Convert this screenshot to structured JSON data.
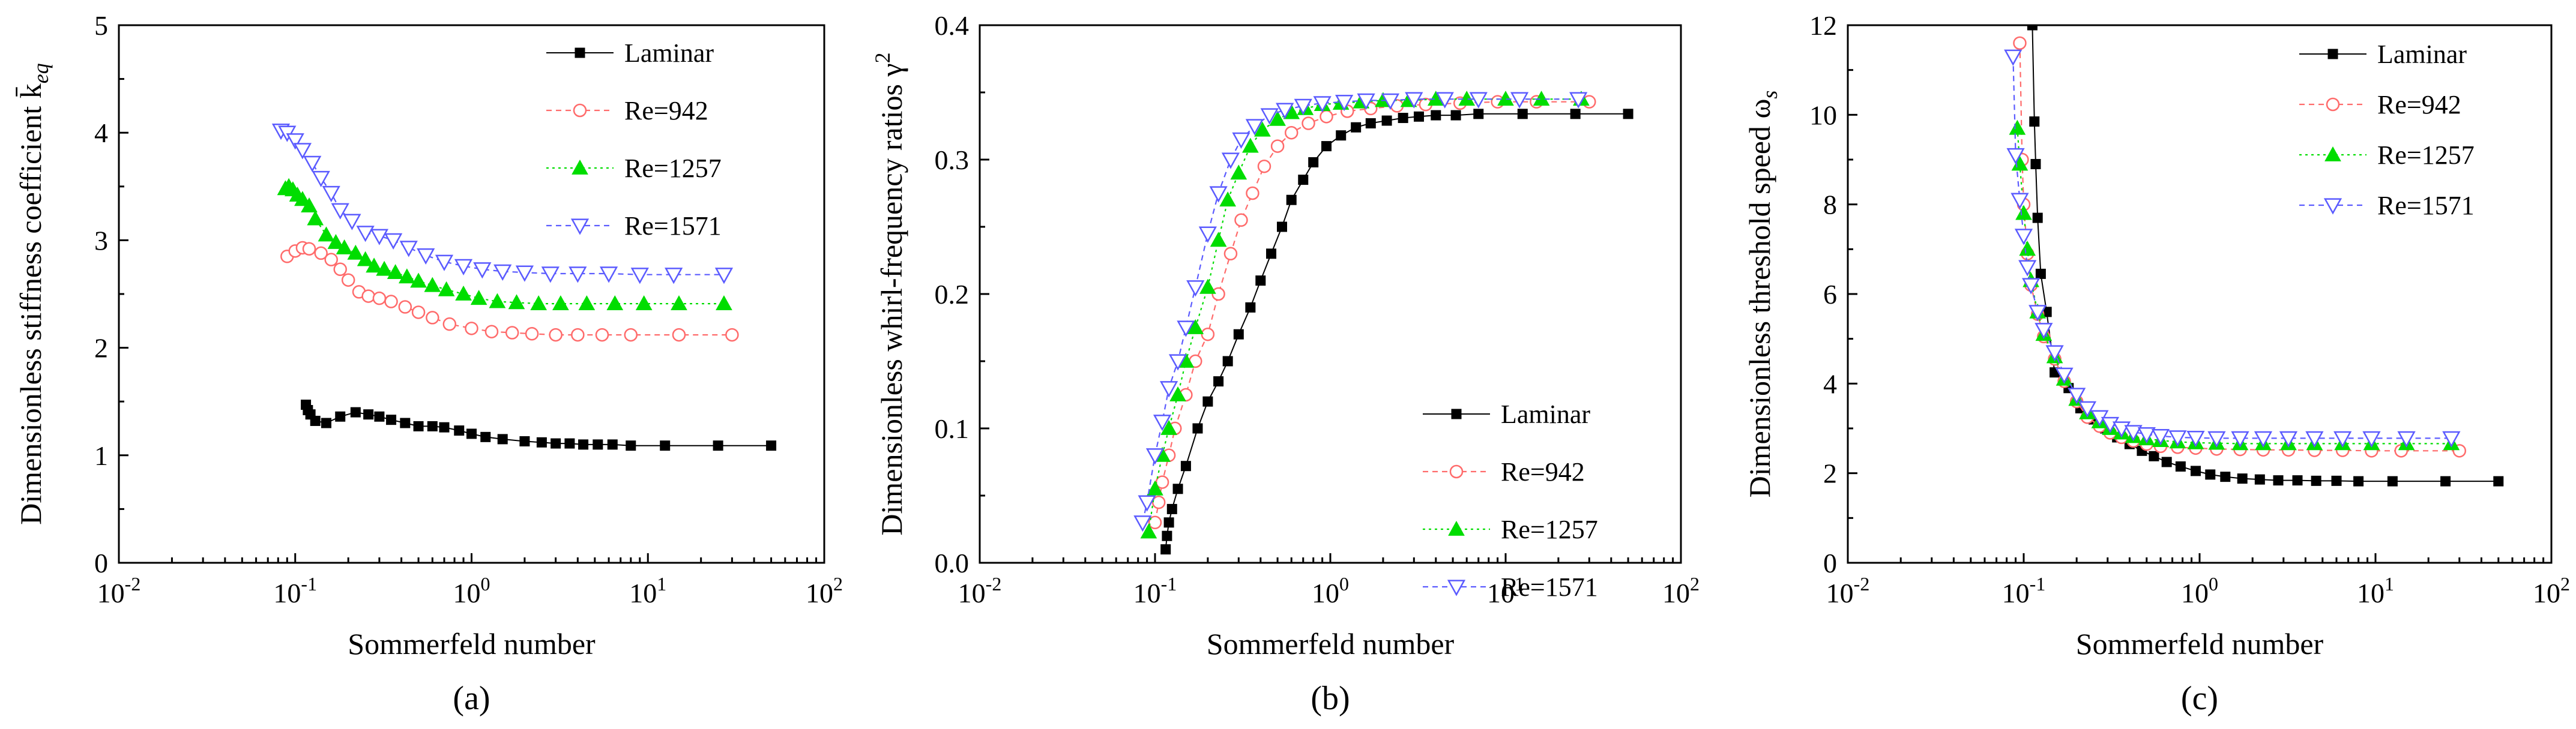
{
  "chart_data": [
    {
      "type": "line",
      "panel_label": "(a)",
      "xlabel": "Sommerfeld number",
      "ylabel": "Dimensionless stiffness coefficient k̄",
      "ylabel_sub": "eq",
      "xscale": "log",
      "xlim": [
        0.01,
        100
      ],
      "ylim": [
        0,
        5
      ],
      "x_ticks": [
        {
          "value": 0.01,
          "base": "10",
          "exp": "-2"
        },
        {
          "value": 0.1,
          "base": "10",
          "exp": "-1"
        },
        {
          "value": 1,
          "base": "10",
          "exp": "0"
        },
        {
          "value": 10,
          "base": "10",
          "exp": "1"
        },
        {
          "value": 100,
          "base": "10",
          "exp": "2"
        }
      ],
      "y_ticks": [
        {
          "value": 0,
          "label": "0"
        },
        {
          "value": 1,
          "label": "1"
        },
        {
          "value": 2,
          "label": "2"
        },
        {
          "value": 3,
          "label": "3"
        },
        {
          "value": 4,
          "label": "4"
        },
        {
          "value": 5,
          "label": "5"
        }
      ],
      "legend_position": "top-right",
      "series": [
        {
          "name": "Laminar",
          "color": "#000000",
          "marker": "square",
          "dash": "",
          "x": [
            0.115,
            0.118,
            0.122,
            0.13,
            0.15,
            0.18,
            0.22,
            0.26,
            0.3,
            0.35,
            0.42,
            0.5,
            0.6,
            0.7,
            0.85,
            1.0,
            1.2,
            1.5,
            2.0,
            2.5,
            3.0,
            3.6,
            4.3,
            5.2,
            6.3,
            8.0,
            12.5,
            25,
            50
          ],
          "y": [
            1.47,
            1.42,
            1.38,
            1.32,
            1.3,
            1.36,
            1.4,
            1.38,
            1.36,
            1.33,
            1.3,
            1.27,
            1.27,
            1.26,
            1.23,
            1.2,
            1.17,
            1.15,
            1.13,
            1.12,
            1.11,
            1.11,
            1.1,
            1.1,
            1.1,
            1.09,
            1.09,
            1.09,
            1.09
          ]
        },
        {
          "name": "Re=942",
          "color": "#ff6b6b",
          "marker": "circle",
          "dash": "9,7",
          "x": [
            0.09,
            0.1,
            0.11,
            0.12,
            0.14,
            0.16,
            0.18,
            0.2,
            0.23,
            0.26,
            0.3,
            0.35,
            0.42,
            0.5,
            0.6,
            0.75,
            1.0,
            1.3,
            1.7,
            2.2,
            3.0,
            4.0,
            5.5,
            8.0,
            15,
            30
          ],
          "y": [
            2.85,
            2.9,
            2.93,
            2.92,
            2.88,
            2.82,
            2.73,
            2.63,
            2.52,
            2.48,
            2.46,
            2.43,
            2.38,
            2.33,
            2.28,
            2.22,
            2.18,
            2.15,
            2.14,
            2.13,
            2.12,
            2.12,
            2.12,
            2.12,
            2.12,
            2.12
          ]
        },
        {
          "name": "Re=1257",
          "color": "#00dd00",
          "marker": "triangle-up",
          "dash": "4,6",
          "x": [
            0.088,
            0.092,
            0.097,
            0.103,
            0.11,
            0.12,
            0.13,
            0.15,
            0.17,
            0.19,
            0.22,
            0.25,
            0.28,
            0.32,
            0.37,
            0.43,
            0.5,
            0.6,
            0.72,
            0.9,
            1.1,
            1.4,
            1.8,
            2.4,
            3.2,
            4.5,
            6.5,
            9.5,
            15,
            27
          ],
          "y": [
            3.48,
            3.5,
            3.47,
            3.42,
            3.38,
            3.32,
            3.2,
            3.05,
            2.98,
            2.93,
            2.88,
            2.82,
            2.76,
            2.73,
            2.7,
            2.66,
            2.62,
            2.58,
            2.54,
            2.5,
            2.46,
            2.43,
            2.42,
            2.41,
            2.41,
            2.41,
            2.41,
            2.41,
            2.41,
            2.41
          ]
        },
        {
          "name": "Re=1571",
          "color": "#5b5bff",
          "marker": "triangle-down",
          "dash": "9,7",
          "x": [
            0.083,
            0.09,
            0.1,
            0.11,
            0.125,
            0.14,
            0.16,
            0.18,
            0.21,
            0.25,
            0.3,
            0.36,
            0.44,
            0.55,
            0.7,
            0.9,
            1.15,
            1.5,
            2.0,
            2.8,
            4.0,
            6.0,
            9.0,
            14,
            27
          ],
          "y": [
            4.02,
            4.0,
            3.93,
            3.84,
            3.72,
            3.58,
            3.44,
            3.28,
            3.18,
            3.07,
            3.04,
            3.0,
            2.93,
            2.86,
            2.8,
            2.76,
            2.73,
            2.71,
            2.7,
            2.69,
            2.69,
            2.69,
            2.68,
            2.68,
            2.68
          ]
        }
      ]
    },
    {
      "type": "line",
      "panel_label": "(b)",
      "xlabel": "Sommerfeld number",
      "ylabel": "Dimensionless whirl-frequency ratios γ",
      "ylabel_sup": "2",
      "xscale": "log",
      "xlim": [
        0.01,
        100
      ],
      "ylim": [
        0,
        0.4
      ],
      "x_ticks": [
        {
          "value": 0.01,
          "base": "10",
          "exp": "-2"
        },
        {
          "value": 0.1,
          "base": "10",
          "exp": "-1"
        },
        {
          "value": 1,
          "base": "10",
          "exp": "0"
        },
        {
          "value": 10,
          "base": "10",
          "exp": "1"
        },
        {
          "value": 100,
          "base": "10",
          "exp": "2"
        }
      ],
      "y_ticks": [
        {
          "value": 0,
          "label": "0.0"
        },
        {
          "value": 0.1,
          "label": "0.1"
        },
        {
          "value": 0.2,
          "label": "0.2"
        },
        {
          "value": 0.3,
          "label": "0.3"
        },
        {
          "value": 0.4,
          "label": "0.4"
        }
      ],
      "legend_position": "bottom-right",
      "series": [
        {
          "name": "Laminar",
          "color": "#000000",
          "marker": "square",
          "dash": "",
          "x": [
            0.115,
            0.117,
            0.12,
            0.125,
            0.135,
            0.15,
            0.175,
            0.2,
            0.23,
            0.26,
            0.3,
            0.35,
            0.4,
            0.46,
            0.53,
            0.6,
            0.7,
            0.8,
            0.95,
            1.15,
            1.4,
            1.7,
            2.1,
            2.6,
            3.2,
            4.0,
            5.2,
            7.0,
            12.5,
            25,
            50
          ],
          "y": [
            0.01,
            0.02,
            0.03,
            0.04,
            0.055,
            0.072,
            0.1,
            0.12,
            0.135,
            0.15,
            0.17,
            0.19,
            0.21,
            0.23,
            0.25,
            0.27,
            0.285,
            0.298,
            0.31,
            0.318,
            0.324,
            0.327,
            0.329,
            0.331,
            0.332,
            0.333,
            0.333,
            0.334,
            0.334,
            0.334,
            0.334
          ]
        },
        {
          "name": "Re=942",
          "color": "#ff6b6b",
          "marker": "circle",
          "dash": "9,7",
          "x": [
            0.1,
            0.105,
            0.11,
            0.12,
            0.13,
            0.15,
            0.17,
            0.2,
            0.23,
            0.27,
            0.31,
            0.36,
            0.42,
            0.5,
            0.6,
            0.75,
            0.95,
            1.25,
            1.7,
            2.4,
            3.5,
            5.5,
            9.0,
            15,
            30
          ],
          "y": [
            0.03,
            0.045,
            0.06,
            0.08,
            0.1,
            0.125,
            0.15,
            0.17,
            0.2,
            0.23,
            0.255,
            0.275,
            0.295,
            0.31,
            0.32,
            0.327,
            0.332,
            0.336,
            0.338,
            0.34,
            0.341,
            0.342,
            0.343,
            0.343,
            0.343
          ]
        },
        {
          "name": "Re=1257",
          "color": "#00dd00",
          "marker": "triangle-up",
          "dash": "4,6",
          "x": [
            0.092,
            0.1,
            0.11,
            0.12,
            0.135,
            0.15,
            0.17,
            0.2,
            0.23,
            0.26,
            0.3,
            0.35,
            0.41,
            0.5,
            0.6,
            0.72,
            0.9,
            1.15,
            1.5,
            2.0,
            2.8,
            4.0,
            6.0,
            10,
            16,
            27
          ],
          "y": [
            0.023,
            0.055,
            0.08,
            0.1,
            0.125,
            0.15,
            0.175,
            0.205,
            0.24,
            0.27,
            0.29,
            0.31,
            0.322,
            0.33,
            0.335,
            0.338,
            0.341,
            0.342,
            0.343,
            0.344,
            0.344,
            0.345,
            0.345,
            0.345,
            0.345,
            0.345
          ]
        },
        {
          "name": "Re=1571",
          "color": "#5b5bff",
          "marker": "triangle-down",
          "dash": "9,7",
          "x": [
            0.085,
            0.09,
            0.1,
            0.11,
            0.12,
            0.135,
            0.15,
            0.17,
            0.2,
            0.23,
            0.27,
            0.31,
            0.37,
            0.45,
            0.55,
            0.7,
            0.9,
            1.2,
            1.6,
            2.2,
            3.0,
            4.5,
            7.0,
            12,
            26
          ],
          "y": [
            0.03,
            0.045,
            0.08,
            0.105,
            0.13,
            0.15,
            0.175,
            0.205,
            0.245,
            0.275,
            0.3,
            0.315,
            0.325,
            0.333,
            0.337,
            0.34,
            0.342,
            0.343,
            0.344,
            0.344,
            0.345,
            0.345,
            0.345,
            0.345,
            0.345
          ]
        }
      ]
    },
    {
      "type": "line",
      "panel_label": "(c)",
      "xlabel": "Sommerfeld number",
      "ylabel": "Dimensionless threshold speed ω",
      "ylabel_sub": "s",
      "xscale": "log",
      "xlim": [
        0.01,
        100
      ],
      "ylim": [
        0,
        12
      ],
      "x_ticks": [
        {
          "value": 0.01,
          "base": "10",
          "exp": "-2"
        },
        {
          "value": 0.1,
          "base": "10",
          "exp": "-1"
        },
        {
          "value": 1,
          "base": "10",
          "exp": "0"
        },
        {
          "value": 10,
          "base": "10",
          "exp": "1"
        },
        {
          "value": 100,
          "base": "10",
          "exp": "2"
        }
      ],
      "y_ticks": [
        {
          "value": 0,
          "label": "0"
        },
        {
          "value": 2,
          "label": "2"
        },
        {
          "value": 4,
          "label": "4"
        },
        {
          "value": 6,
          "label": "6"
        },
        {
          "value": 8,
          "label": "8"
        },
        {
          "value": 10,
          "label": "10"
        },
        {
          "value": 12,
          "label": "12"
        }
      ],
      "legend_position": "top-right",
      "series": [
        {
          "name": "Laminar",
          "color": "#000000",
          "marker": "square",
          "dash": "",
          "x": [
            0.112,
            0.115,
            0.117,
            0.12,
            0.125,
            0.135,
            0.15,
            0.18,
            0.21,
            0.25,
            0.29,
            0.34,
            0.4,
            0.47,
            0.55,
            0.65,
            0.78,
            0.95,
            1.15,
            1.4,
            1.75,
            2.2,
            2.8,
            3.6,
            4.6,
            6.0,
            8.0,
            12.5,
            25,
            50
          ],
          "y": [
            12.0,
            9.85,
            8.9,
            7.7,
            6.45,
            5.6,
            4.25,
            3.9,
            3.45,
            3.2,
            3.0,
            2.8,
            2.65,
            2.5,
            2.38,
            2.25,
            2.15,
            2.05,
            1.97,
            1.92,
            1.88,
            1.86,
            1.84,
            1.84,
            1.83,
            1.83,
            1.82,
            1.82,
            1.82,
            1.82
          ]
        },
        {
          "name": "Re=942",
          "color": "#ff6b6b",
          "marker": "circle",
          "dash": "9,7",
          "x": [
            0.095,
            0.098,
            0.1,
            0.105,
            0.11,
            0.12,
            0.13,
            0.15,
            0.17,
            0.2,
            0.23,
            0.27,
            0.31,
            0.36,
            0.42,
            0.5,
            0.6,
            0.75,
            0.95,
            1.25,
            1.7,
            2.3,
            3.2,
            4.5,
            6.5,
            9.5,
            14,
            30
          ],
          "y": [
            11.6,
            9.0,
            8.0,
            6.9,
            6.2,
            5.55,
            5.05,
            4.55,
            4.05,
            3.6,
            3.25,
            3.05,
            2.9,
            2.8,
            2.72,
            2.65,
            2.6,
            2.58,
            2.56,
            2.54,
            2.53,
            2.52,
            2.52,
            2.51,
            2.51,
            2.5,
            2.5,
            2.5
          ]
        },
        {
          "name": "Re=1257",
          "color": "#00dd00",
          "marker": "triangle-up",
          "dash": "4,6",
          "x": [
            0.092,
            0.095,
            0.1,
            0.105,
            0.11,
            0.12,
            0.13,
            0.15,
            0.17,
            0.2,
            0.23,
            0.27,
            0.31,
            0.36,
            0.42,
            0.5,
            0.6,
            0.75,
            0.95,
            1.25,
            1.7,
            2.3,
            3.2,
            4.5,
            6.5,
            9.5,
            15,
            27
          ],
          "y": [
            9.7,
            8.9,
            7.8,
            7.0,
            6.3,
            5.6,
            5.1,
            4.6,
            4.1,
            3.65,
            3.35,
            3.15,
            3.0,
            2.9,
            2.82,
            2.77,
            2.73,
            2.7,
            2.68,
            2.67,
            2.66,
            2.66,
            2.66,
            2.66,
            2.66,
            2.66,
            2.66,
            2.66
          ]
        },
        {
          "name": "Re=1571",
          "color": "#5b5bff",
          "marker": "triangle-down",
          "dash": "9,7",
          "x": [
            0.087,
            0.09,
            0.095,
            0.1,
            0.105,
            0.11,
            0.12,
            0.13,
            0.15,
            0.17,
            0.2,
            0.23,
            0.27,
            0.31,
            0.36,
            0.42,
            0.5,
            0.6,
            0.75,
            0.95,
            1.25,
            1.7,
            2.3,
            3.2,
            4.5,
            6.5,
            9.5,
            15,
            27
          ],
          "y": [
            11.3,
            9.1,
            8.1,
            7.3,
            6.6,
            6.2,
            5.6,
            5.2,
            4.7,
            4.2,
            3.75,
            3.45,
            3.25,
            3.1,
            3.0,
            2.92,
            2.87,
            2.83,
            2.8,
            2.79,
            2.78,
            2.78,
            2.78,
            2.78,
            2.78,
            2.78,
            2.78,
            2.78,
            2.78
          ]
        }
      ]
    }
  ]
}
